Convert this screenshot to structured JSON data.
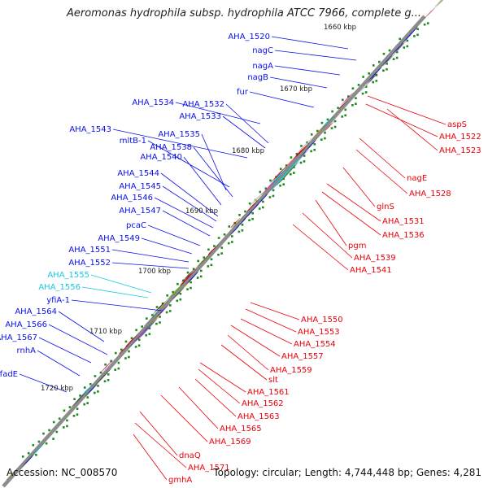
{
  "title": "Aeromonas hydrophila subsp. hydrophila ATCC 7966, complete g...",
  "footer": {
    "accession": "Accession: NC_008570",
    "topology": "Topology: circular; Length: 4,744,448 bp; Genes: 4,281"
  },
  "colors": {
    "backbone": "#8c8c8c",
    "plus_strand": "#0a10e6",
    "minus_strand": "#e8000a",
    "rna": "#18c8dd",
    "tick": "#1c8a1c"
  },
  "scale_labels": [
    "1660 kbp",
    "1670 kbp",
    "1680 kbp",
    "1690 kbp",
    "1700 kbp",
    "1710 kbp",
    "1720 kbp"
  ],
  "left_labels": [
    {
      "text": "AHA_1520",
      "kind": "plus"
    },
    {
      "text": "nagC",
      "kind": "plus"
    },
    {
      "text": "nagA",
      "kind": "plus"
    },
    {
      "text": "nagB",
      "kind": "plus"
    },
    {
      "text": "fur",
      "kind": "plus"
    },
    {
      "text": "AHA_1534",
      "kind": "plus"
    },
    {
      "text": "AHA_1532",
      "kind": "plus"
    },
    {
      "text": "AHA_1533",
      "kind": "plus"
    },
    {
      "text": "AHA_1543",
      "kind": "plus"
    },
    {
      "text": "mltB-1",
      "kind": "plus"
    },
    {
      "text": "AHA_1535",
      "kind": "plus"
    },
    {
      "text": "AHA_1538",
      "kind": "plus"
    },
    {
      "text": "AHA_1540",
      "kind": "plus"
    },
    {
      "text": "AHA_1544",
      "kind": "plus"
    },
    {
      "text": "AHA_1545",
      "kind": "plus"
    },
    {
      "text": "AHA_1546",
      "kind": "plus"
    },
    {
      "text": "AHA_1547",
      "kind": "plus"
    },
    {
      "text": "pcaC",
      "kind": "plus"
    },
    {
      "text": "AHA_1549",
      "kind": "plus"
    },
    {
      "text": "AHA_1551",
      "kind": "plus"
    },
    {
      "text": "AHA_1552",
      "kind": "plus"
    },
    {
      "text": "AHA_1555",
      "kind": "rna"
    },
    {
      "text": "AHA_1556",
      "kind": "rna"
    },
    {
      "text": "yfiA-1",
      "kind": "plus"
    },
    {
      "text": "AHA_1564",
      "kind": "plus"
    },
    {
      "text": "AHA_1566",
      "kind": "plus"
    },
    {
      "text": "AHA_1567",
      "kind": "plus"
    },
    {
      "text": "rnhA",
      "kind": "plus"
    },
    {
      "text": "fadE",
      "kind": "plus"
    }
  ],
  "right_labels": [
    {
      "text": "aspS",
      "kind": "minus"
    },
    {
      "text": "AHA_1522",
      "kind": "minus"
    },
    {
      "text": "AHA_1523",
      "kind": "minus"
    },
    {
      "text": "nagE",
      "kind": "minus"
    },
    {
      "text": "AHA_1528",
      "kind": "minus"
    },
    {
      "text": "glnS",
      "kind": "minus"
    },
    {
      "text": "AHA_1531",
      "kind": "minus"
    },
    {
      "text": "AHA_1536",
      "kind": "minus"
    },
    {
      "text": "pgm",
      "kind": "minus"
    },
    {
      "text": "AHA_1539",
      "kind": "minus"
    },
    {
      "text": "AHA_1541",
      "kind": "minus"
    },
    {
      "text": "AHA_1550",
      "kind": "minus"
    },
    {
      "text": "AHA_1553",
      "kind": "minus"
    },
    {
      "text": "AHA_1554",
      "kind": "minus"
    },
    {
      "text": "AHA_1557",
      "kind": "minus"
    },
    {
      "text": "AHA_1559",
      "kind": "minus"
    },
    {
      "text": "slt",
      "kind": "minus"
    },
    {
      "text": "AHA_1561",
      "kind": "minus"
    },
    {
      "text": "AHA_1562",
      "kind": "minus"
    },
    {
      "text": "AHA_1563",
      "kind": "minus"
    },
    {
      "text": "AHA_1565",
      "kind": "minus"
    },
    {
      "text": "AHA_1569",
      "kind": "minus"
    },
    {
      "text": "dnaQ",
      "kind": "minus"
    },
    {
      "text": "AHA_1571",
      "kind": "minus"
    },
    {
      "text": "gmhA",
      "kind": "minus"
    }
  ]
}
